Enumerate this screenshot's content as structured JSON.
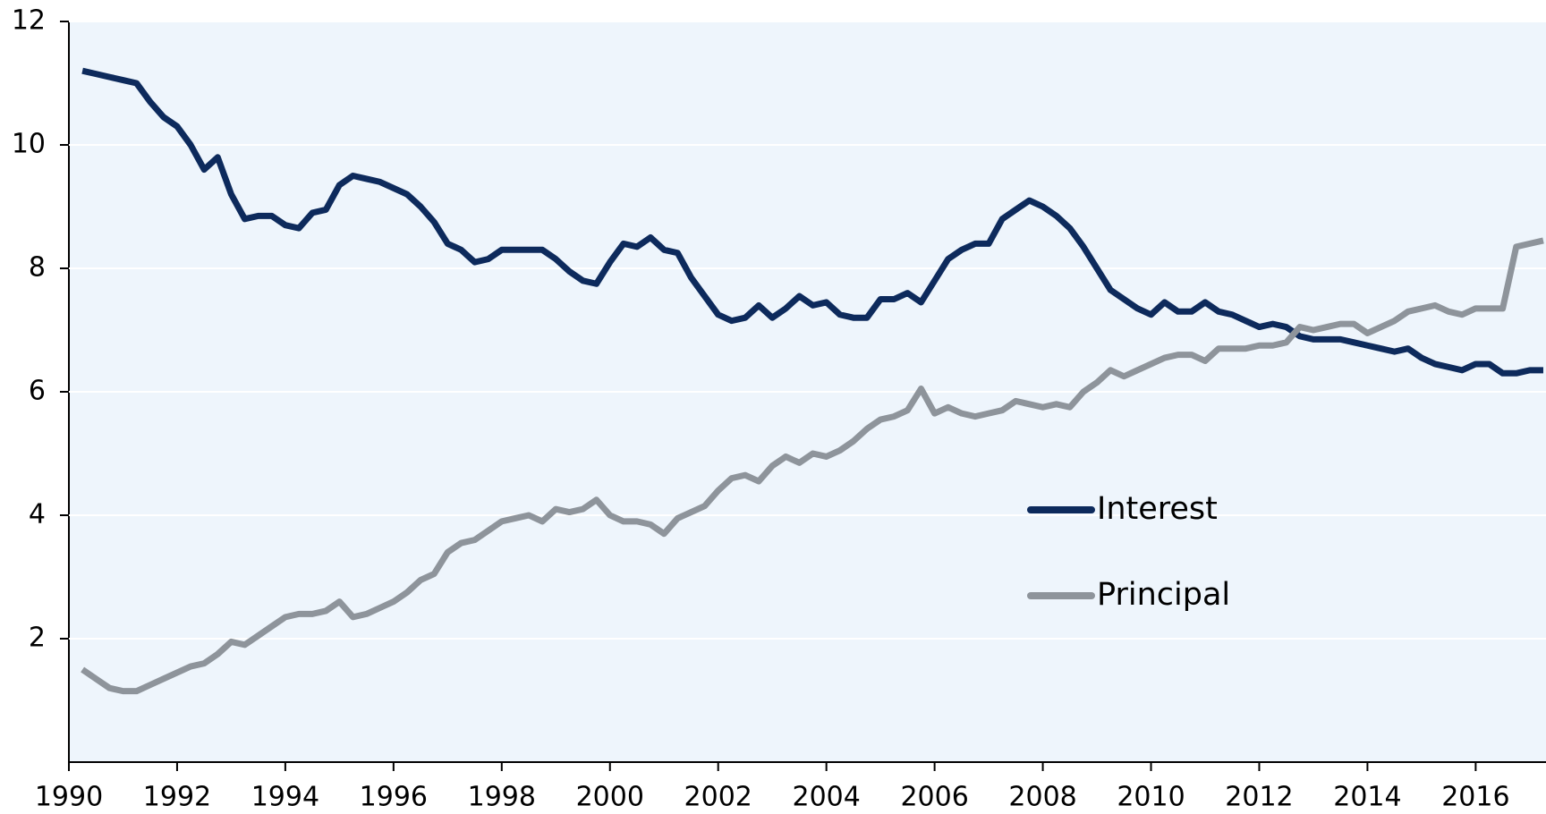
{
  "chart_data": {
    "type": "line",
    "x": [
      1990.25,
      1990.5,
      1990.75,
      1991,
      1991.25,
      1991.5,
      1991.75,
      1992,
      1992.25,
      1992.5,
      1992.75,
      1993,
      1993.25,
      1993.5,
      1993.75,
      1994,
      1994.25,
      1994.5,
      1994.75,
      1995,
      1995.25,
      1995.5,
      1995.75,
      1996,
      1996.25,
      1996.5,
      1996.75,
      1997,
      1997.25,
      1997.5,
      1997.75,
      1998,
      1998.25,
      1998.5,
      1998.75,
      1999,
      1999.25,
      1999.5,
      1999.75,
      2000,
      2000.25,
      2000.5,
      2000.75,
      2001,
      2001.25,
      2001.5,
      2001.75,
      2002,
      2002.25,
      2002.5,
      2002.75,
      2003,
      2003.25,
      2003.5,
      2003.75,
      2004,
      2004.25,
      2004.5,
      2004.75,
      2005,
      2005.25,
      2005.5,
      2005.75,
      2006,
      2006.25,
      2006.5,
      2006.75,
      2007,
      2007.25,
      2007.5,
      2007.75,
      2008,
      2008.25,
      2008.5,
      2008.75,
      2009,
      2009.25,
      2009.5,
      2009.75,
      2010,
      2010.25,
      2010.5,
      2010.75,
      2011,
      2011.25,
      2011.5,
      2011.75,
      2012,
      2012.25,
      2012.5,
      2012.75,
      2013,
      2013.25,
      2013.5,
      2013.75,
      2014,
      2014.25,
      2014.5,
      2014.75,
      2015,
      2015.25,
      2015.5,
      2015.75,
      2016,
      2016.25,
      2016.5,
      2016.75,
      2017,
      2017.25
    ],
    "series": [
      {
        "name": "Interest",
        "color": "#0d2a5c",
        "values": [
          11.2,
          11.15,
          11.1,
          11.05,
          11.0,
          10.7,
          10.45,
          10.3,
          10.0,
          9.6,
          9.8,
          9.2,
          8.8,
          8.85,
          8.85,
          8.7,
          8.65,
          8.9,
          8.95,
          9.35,
          9.5,
          9.45,
          9.4,
          9.3,
          9.2,
          9.0,
          8.75,
          8.4,
          8.3,
          8.1,
          8.15,
          8.3,
          8.3,
          8.3,
          8.3,
          8.15,
          7.95,
          7.8,
          7.75,
          8.1,
          8.4,
          8.35,
          8.5,
          8.3,
          8.25,
          7.85,
          7.55,
          7.25,
          7.15,
          7.2,
          7.4,
          7.2,
          7.35,
          7.55,
          7.4,
          7.45,
          7.25,
          7.2,
          7.2,
          7.5,
          7.5,
          7.6,
          7.45,
          7.8,
          8.15,
          8.3,
          8.4,
          8.4,
          8.8,
          8.95,
          9.1,
          9.0,
          8.85,
          8.65,
          8.35,
          8.0,
          7.65,
          7.5,
          7.35,
          7.25,
          7.45,
          7.3,
          7.3,
          7.45,
          7.3,
          7.25,
          7.15,
          7.05,
          7.1,
          7.05,
          6.9,
          6.85,
          6.85,
          6.85,
          6.8,
          6.75,
          6.7,
          6.65,
          6.7,
          6.55,
          6.45,
          6.4,
          6.35,
          6.45,
          6.45,
          6.3,
          6.3,
          6.35,
          6.35
        ]
      },
      {
        "name": "Principal",
        "color": "#8e949b",
        "values": [
          1.5,
          1.35,
          1.2,
          1.15,
          1.15,
          1.25,
          1.35,
          1.45,
          1.55,
          1.6,
          1.75,
          1.95,
          1.9,
          2.05,
          2.2,
          2.35,
          2.4,
          2.4,
          2.45,
          2.6,
          2.35,
          2.4,
          2.5,
          2.6,
          2.75,
          2.95,
          3.05,
          3.4,
          3.55,
          3.6,
          3.75,
          3.9,
          3.95,
          4.0,
          3.9,
          4.1,
          4.05,
          4.1,
          4.25,
          4.0,
          3.9,
          3.9,
          3.85,
          3.7,
          3.95,
          4.05,
          4.15,
          4.4,
          4.6,
          4.65,
          4.55,
          4.8,
          4.95,
          4.85,
          5.0,
          4.95,
          5.05,
          5.2,
          5.4,
          5.55,
          5.6,
          5.7,
          6.05,
          5.65,
          5.75,
          5.65,
          5.6,
          5.65,
          5.7,
          5.85,
          5.8,
          5.75,
          5.8,
          5.75,
          6.0,
          6.15,
          6.35,
          6.25,
          6.35,
          6.45,
          6.55,
          6.6,
          6.6,
          6.5,
          6.7,
          6.7,
          6.7,
          6.75,
          6.75,
          6.8,
          7.05,
          7.0,
          7.05,
          7.1,
          7.1,
          6.95,
          7.05,
          7.15,
          7.3,
          7.35,
          7.4,
          7.3,
          7.25,
          7.35,
          7.35,
          7.35,
          8.35,
          8.4,
          8.45
        ]
      }
    ],
    "xlim": [
      1990,
      2017.3
    ],
    "xticks": [
      1990,
      1992,
      1994,
      1996,
      1998,
      2000,
      2002,
      2004,
      2006,
      2008,
      2010,
      2012,
      2014,
      2016
    ],
    "ylim": [
      0,
      12
    ],
    "yticks": [
      2,
      4,
      6,
      8,
      10,
      12
    ],
    "grid": true
  }
}
